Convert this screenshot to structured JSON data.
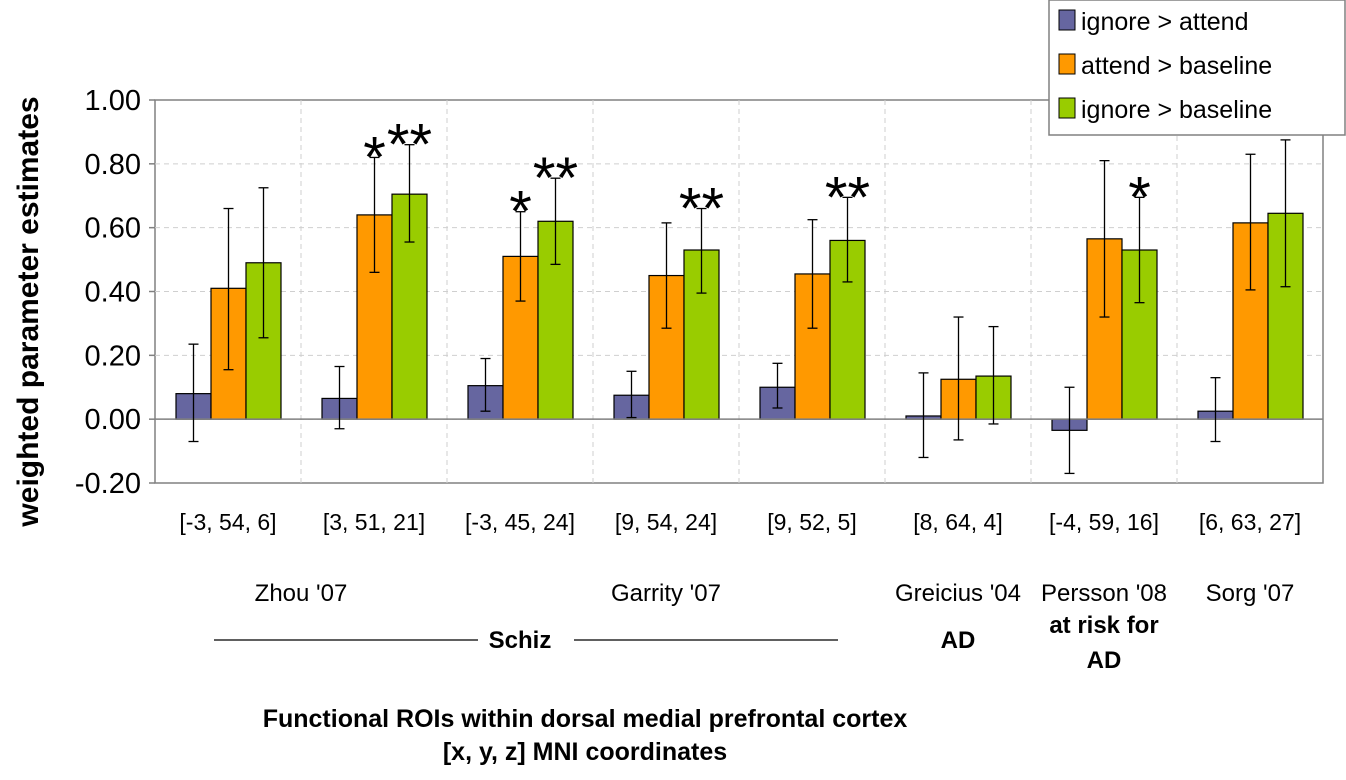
{
  "chart_data": {
    "type": "bar",
    "ylabel": "weighted parameter estimates",
    "xlabel_lines": [
      "Functional ROIs within dorsal medial prefrontal cortex",
      "[x, y, z] MNI coordinates"
    ],
    "ylim": [
      -0.2,
      1.0
    ],
    "yticks": [
      "1.00",
      "0.80",
      "0.60",
      "0.40",
      "0.20",
      "0.00",
      "-0.20"
    ],
    "ytick_values": [
      1.0,
      0.8,
      0.6,
      0.4,
      0.2,
      0.0,
      -0.2
    ],
    "grid": true,
    "legend_position": "top-right",
    "categories": [
      "[-3, 54, 6]",
      "[3, 51, 21]",
      "[-3, 45, 24]",
      "[9, 54, 24]",
      "[9, 52, 5]",
      "[8, 64, 4]",
      "[-4, 59, 16]",
      "[6, 63, 27]"
    ],
    "series": [
      {
        "name": "ignore > attend",
        "color": "#6666a0",
        "values": [
          0.08,
          0.065,
          0.105,
          0.075,
          0.1,
          0.01,
          -0.035,
          0.025
        ],
        "err_low": [
          -0.07,
          -0.03,
          0.025,
          0.005,
          0.035,
          -0.12,
          -0.17,
          -0.07
        ],
        "err_high": [
          0.235,
          0.165,
          0.19,
          0.15,
          0.175,
          0.145,
          0.1,
          0.13
        ]
      },
      {
        "name": "attend > baseline",
        "color": "#ff9900",
        "values": [
          0.41,
          0.64,
          0.51,
          0.45,
          0.455,
          0.125,
          0.565,
          0.615
        ],
        "err_low": [
          0.155,
          0.46,
          0.37,
          0.285,
          0.285,
          -0.065,
          0.32,
          0.405
        ],
        "err_high": [
          0.66,
          0.82,
          0.65,
          0.615,
          0.625,
          0.32,
          0.81,
          0.83
        ]
      },
      {
        "name": "ignore > baseline",
        "color": "#99cc00",
        "values": [
          0.49,
          0.705,
          0.62,
          0.53,
          0.56,
          0.135,
          0.53,
          0.645
        ],
        "err_low": [
          0.255,
          0.555,
          0.485,
          0.395,
          0.43,
          -0.015,
          0.365,
          0.415
        ],
        "err_high": [
          0.725,
          0.86,
          0.755,
          0.66,
          0.695,
          0.29,
          0.695,
          0.875
        ]
      }
    ],
    "significance": [
      {
        "category_index": 1,
        "series_index": 1,
        "label": "*"
      },
      {
        "category_index": 1,
        "series_index": 2,
        "label": "**"
      },
      {
        "category_index": 2,
        "series_index": 1,
        "label": "*"
      },
      {
        "category_index": 2,
        "series_index": 2,
        "label": "**"
      },
      {
        "category_index": 3,
        "series_index": 2,
        "label": "**"
      },
      {
        "category_index": 4,
        "series_index": 2,
        "label": "**"
      },
      {
        "category_index": 6,
        "series_index": 2,
        "label": "*"
      }
    ],
    "studies": [
      {
        "label": "Zhou '07",
        "anchor_category": 0.5
      },
      {
        "label": "Garrity '07",
        "anchor_category": 3.0
      },
      {
        "label": "Greicius '04",
        "anchor_category": 5.0
      },
      {
        "label": "Persson '08",
        "anchor_category": 6.0
      },
      {
        "label": "Sorg '07",
        "anchor_category": 7.0
      }
    ],
    "groups": [
      {
        "label": "Schiz",
        "anchor_category": 2.0
      },
      {
        "label": "AD",
        "anchor_category": 5.0
      },
      {
        "label": "at risk for",
        "anchor_category": 6.0,
        "line": 1
      },
      {
        "label": "AD",
        "anchor_category": 6.0,
        "line": 2
      }
    ]
  }
}
